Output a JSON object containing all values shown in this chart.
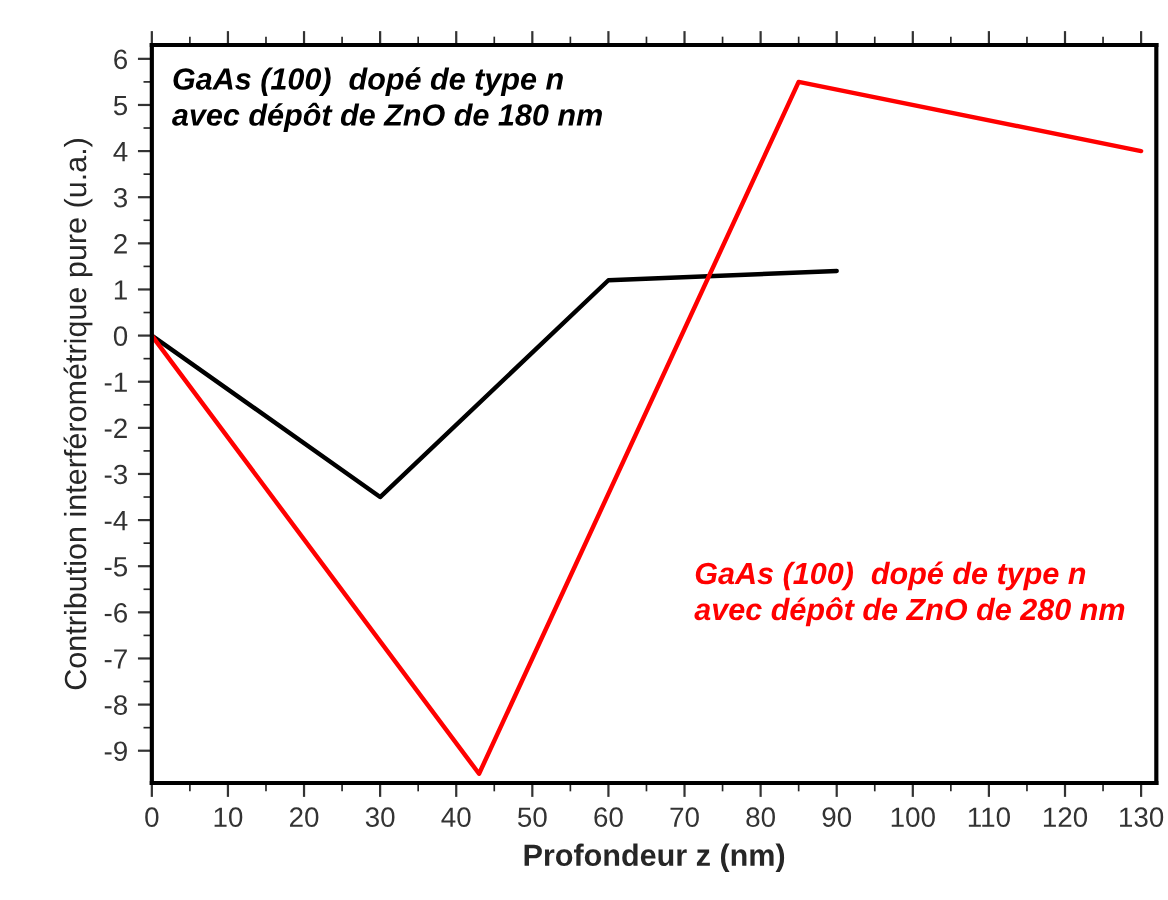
{
  "chart_data": {
    "type": "line",
    "xlabel": "Profondeur z (nm)",
    "ylabel": "Contribution interférométrique pure (u.a.)",
    "xlim": [
      0,
      132
    ],
    "ylim": [
      -9.7,
      6.3
    ],
    "xticks": [
      0,
      10,
      20,
      30,
      40,
      50,
      60,
      70,
      80,
      90,
      100,
      110,
      120,
      130
    ],
    "yticks": [
      -9,
      -8,
      -7,
      -6,
      -5,
      -4,
      -3,
      -2,
      -1,
      0,
      1,
      2,
      3,
      4,
      5,
      6
    ],
    "grid": false,
    "legend": false,
    "marker": "none",
    "line_style": "solid",
    "series": [
      {
        "name": "GaAs (100)  dopé de type n\navec dépôt de ZnO de 180 nm",
        "color": "#000000",
        "x": [
          0,
          30,
          60,
          90
        ],
        "values": [
          0,
          -3.5,
          1.2,
          1.4
        ]
      },
      {
        "name": "GaAs (100)  dopé de type n\navec dépôt de ZnO de 280 nm",
        "color": "#ff0000",
        "x": [
          0,
          43,
          85,
          130
        ],
        "values": [
          0,
          -9.5,
          5.5,
          4
        ]
      }
    ]
  }
}
